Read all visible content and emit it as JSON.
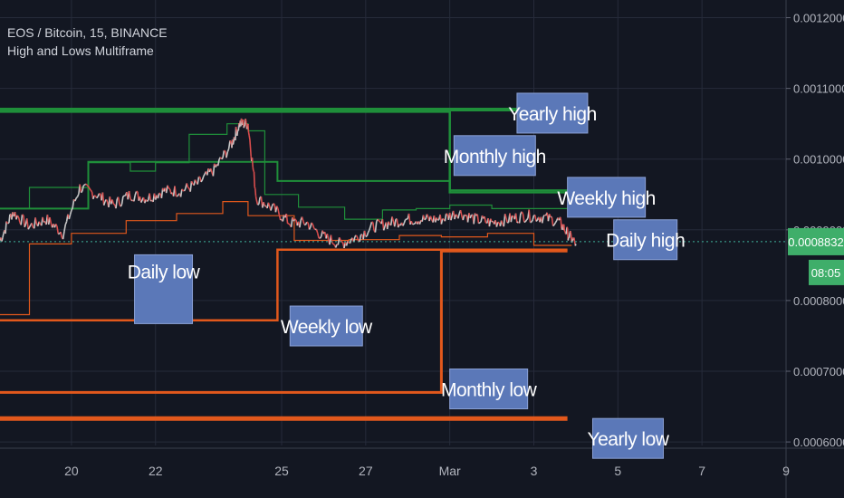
{
  "header": {
    "symbol_line": "EOS / Bitcoin, 15, BINANCE",
    "indicator_name": "High and Lows Multiframe"
  },
  "price_badge": {
    "value": "0.0008832",
    "countdown": "08:05",
    "color": "#3fae6a"
  },
  "colors": {
    "background": "#131722",
    "grid": "#262b3a",
    "high_line": "#1f8f3a",
    "low_line": "#e2581c",
    "candle_up": "#c7c7c7",
    "candle_down": "#d84d4d",
    "label_box": "#5b78b8",
    "current_price": "#3fae9a"
  },
  "chart_data": {
    "type": "line",
    "title": "EOS / Bitcoin, 15, BINANCE",
    "subtitle": "High and Lows Multiframe",
    "x_tick_labels": [
      "20",
      "22",
      "25",
      "27",
      "Mar",
      "3",
      "5",
      "7",
      "9"
    ],
    "x_ticks_day": [
      20,
      22,
      25,
      27,
      29,
      31,
      33,
      35,
      37
    ],
    "xlim_day": [
      18.3,
      37.0
    ],
    "y_tick_labels": [
      "0.0006000",
      "0.0007000",
      "0.0008000",
      "0.0009000",
      "0.0010000",
      "0.0011000",
      "0.0012000"
    ],
    "ylim": [
      0.000595,
      0.001225
    ],
    "current_price": 0.0008832,
    "series": [
      {
        "name": "price",
        "x_day": [
          18.3,
          18.6,
          19.0,
          19.4,
          19.8,
          20.2,
          20.6,
          21.0,
          21.4,
          21.8,
          22.2,
          22.6,
          23.0,
          23.4,
          23.8,
          24.0,
          24.2,
          24.4,
          24.8,
          25.2,
          25.6,
          26.0,
          26.4,
          26.8,
          27.2,
          27.6,
          28.0,
          28.4,
          28.8,
          29.2,
          29.6,
          30.0,
          30.4,
          30.8,
          31.2,
          31.6,
          31.8,
          32.0
        ],
        "values": [
          0.000885,
          0.000925,
          0.000905,
          0.000915,
          0.000895,
          0.00096,
          0.00095,
          0.000935,
          0.00095,
          0.000945,
          0.000955,
          0.000955,
          0.000965,
          0.000985,
          0.00102,
          0.00105,
          0.00105,
          0.000945,
          0.00093,
          0.00091,
          0.00091,
          0.00089,
          0.00088,
          0.00089,
          0.000905,
          0.00091,
          0.000915,
          0.000915,
          0.000915,
          0.000925,
          0.000915,
          0.00091,
          0.000915,
          0.00092,
          0.000918,
          0.000912,
          0.000895,
          0.00088
        ]
      }
    ],
    "level_lines": [
      {
        "name": "Yearly high",
        "label": "Yearly high",
        "kind": "high",
        "x_day": [
          18.3,
          31.2
        ],
        "values": [
          0.00107,
          0.00107
        ]
      },
      {
        "name": "Monthly high",
        "label": "Monthly high",
        "kind": "high",
        "x_day": [
          18.3,
          29.0,
          29.0,
          31.8
        ],
        "values": [
          0.001067,
          0.001067,
          0.000953,
          0.000953
        ]
      },
      {
        "name": "Weekly high",
        "label": "Weekly high",
        "kind": "high",
        "x_day": [
          18.3,
          20.4,
          20.4,
          24.9,
          24.9,
          29.0,
          29.0,
          31.8
        ],
        "values": [
          0.00093,
          0.00093,
          0.000996,
          0.000996,
          0.000969,
          0.000969,
          0.000956,
          0.000956
        ]
      },
      {
        "name": "Daily high",
        "label": "Daily high",
        "kind": "high",
        "x_day": [
          18.3,
          19.0,
          19.0,
          20.4,
          20.4,
          21.4,
          21.4,
          22.0,
          22.0,
          22.8,
          22.8,
          23.7,
          23.7,
          24.2,
          24.2,
          24.6,
          24.6,
          25.4,
          25.4,
          26.5,
          26.5,
          27.4,
          27.4,
          28.2,
          28.2,
          29.0,
          29.0,
          30.0,
          30.0,
          31.0,
          31.0,
          31.9
        ],
        "values": [
          0.00093,
          0.00093,
          0.00096,
          0.00096,
          0.000995,
          0.000995,
          0.000983,
          0.000983,
          0.000995,
          0.000995,
          0.001035,
          0.001035,
          0.00105,
          0.00105,
          0.00104,
          0.00104,
          0.00095,
          0.00095,
          0.000932,
          0.000932,
          0.000915,
          0.000915,
          0.000928,
          0.000928,
          0.00093,
          0.00093,
          0.000935,
          0.000935,
          0.00093,
          0.00093,
          0.00093,
          0.00093
        ]
      },
      {
        "name": "Daily low",
        "label": "Daily low",
        "kind": "low",
        "x_day": [
          18.3,
          19.0,
          19.0,
          20.0,
          20.0,
          21.3,
          21.3,
          22.5,
          22.5,
          23.6,
          23.6,
          24.2,
          24.2,
          25.3,
          25.3,
          26.6,
          26.6,
          27.8,
          27.8,
          28.8,
          28.8,
          29.9,
          29.9,
          31.0,
          31.0,
          31.9
        ],
        "values": [
          0.00078,
          0.00078,
          0.00088,
          0.00088,
          0.000895,
          0.000895,
          0.000913,
          0.000913,
          0.000923,
          0.000923,
          0.00094,
          0.00094,
          0.00092,
          0.00092,
          0.000885,
          0.000885,
          0.000886,
          0.000886,
          0.000892,
          0.000892,
          0.00089,
          0.00089,
          0.000895,
          0.000895,
          0.000878,
          0.000878
        ]
      },
      {
        "name": "Weekly low",
        "label": "Weekly low",
        "kind": "low",
        "x_day": [
          18.3,
          24.9,
          24.9,
          31.8
        ],
        "values": [
          0.000772,
          0.000772,
          0.000872,
          0.000872
        ]
      },
      {
        "name": "Monthly low",
        "label": "Monthly low",
        "kind": "low",
        "x_day": [
          18.3,
          28.8,
          28.8,
          31.8
        ],
        "values": [
          0.00067,
          0.00067,
          0.00087,
          0.00087
        ]
      },
      {
        "name": "Yearly low",
        "label": "Yearly low",
        "kind": "low",
        "x_day": [
          18.3,
          31.8
        ],
        "values": [
          0.000633,
          0.000633
        ]
      }
    ]
  }
}
